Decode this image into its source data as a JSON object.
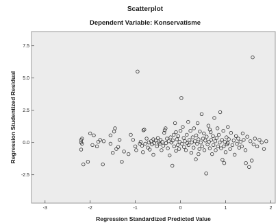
{
  "chart_data": {
    "type": "scatter",
    "title": "Scatterplot",
    "subtitle": "Dependent Variable: Konservatisme",
    "xlabel": "Regression Standardized Predicted Value",
    "ylabel": "Regression Studentized Residual",
    "xlim": [
      -3.3,
      2.1
    ],
    "ylim": [
      -4.7,
      8.6
    ],
    "xticks": [
      -3,
      -2,
      -1,
      0,
      1,
      2
    ],
    "xtick_labels": [
      "-3",
      "-2",
      "-1",
      "0",
      "1",
      "2"
    ],
    "yticks": [
      -2.5,
      0.0,
      2.5,
      5.0,
      7.5
    ],
    "ytick_labels": [
      "-2.5",
      "0.0",
      "2.5",
      "5.0",
      "7.5"
    ],
    "grid": false,
    "colors": {
      "plot_background": "#ececec",
      "marker": "#333333",
      "frame": "#9a9a9a"
    },
    "points": [
      [
        -2.2,
        0.2
      ],
      [
        -2.2,
        0.0
      ],
      [
        -2.18,
        -0.1
      ],
      [
        -2.2,
        -0.55
      ],
      [
        -2.15,
        -1.7
      ],
      [
        -2.18,
        0.3
      ],
      [
        -2.0,
        0.7
      ],
      [
        -1.92,
        0.55
      ],
      [
        -1.95,
        -0.2
      ],
      [
        -1.85,
        -0.3
      ],
      [
        -1.82,
        0.05
      ],
      [
        -1.78,
        0.2
      ],
      [
        -1.72,
        -1.7
      ],
      [
        -2.05,
        -1.5
      ],
      [
        -1.55,
        -0.1
      ],
      [
        -1.55,
        0.55
      ],
      [
        -1.5,
        -0.8
      ],
      [
        -1.47,
        0.85
      ],
      [
        -1.45,
        1.1
      ],
      [
        -1.38,
        -0.35
      ],
      [
        -1.42,
        -0.5
      ],
      [
        -1.3,
        -1.5
      ],
      [
        -1.25,
        -0.7
      ],
      [
        -1.35,
        0.2
      ],
      [
        -1.1,
        0.6
      ],
      [
        -1.05,
        0.2
      ],
      [
        -1.0,
        -0.3
      ],
      [
        -0.98,
        -0.6
      ],
      [
        -0.95,
        5.5
      ],
      [
        -0.9,
        -0.1
      ],
      [
        -0.88,
        0.05
      ],
      [
        -0.85,
        -0.25
      ],
      [
        -0.83,
        -0.75
      ],
      [
        -0.82,
        0.95
      ],
      [
        -0.8,
        1.0
      ],
      [
        -0.78,
        -0.1
      ],
      [
        -0.75,
        0.3
      ],
      [
        -0.72,
        -0.4
      ],
      [
        -0.7,
        0.0
      ],
      [
        -0.68,
        -0.55
      ],
      [
        -0.65,
        0.1
      ],
      [
        -0.63,
        -0.15
      ],
      [
        -0.6,
        0.25
      ],
      [
        -0.58,
        -0.05
      ],
      [
        -0.55,
        0.15
      ],
      [
        -0.52,
        -0.3
      ],
      [
        -0.5,
        0.35
      ],
      [
        -0.48,
        0.0
      ],
      [
        -0.46,
        -0.1
      ],
      [
        -0.44,
        0.2
      ],
      [
        -0.42,
        -0.6
      ],
      [
        -0.4,
        0.05
      ],
      [
        -0.38,
        -0.25
      ],
      [
        -0.36,
        0.75
      ],
      [
        -0.35,
        0.95
      ],
      [
        -0.33,
        1.1
      ],
      [
        -0.32,
        -0.05
      ],
      [
        -0.3,
        0.3
      ],
      [
        -0.28,
        -0.45
      ],
      [
        -0.26,
        0.1
      ],
      [
        -0.24,
        -1.0
      ],
      [
        -0.22,
        0.4
      ],
      [
        -0.2,
        0.0
      ],
      [
        -0.18,
        -1.8
      ],
      [
        -0.17,
        0.15
      ],
      [
        -0.15,
        0.6
      ],
      [
        -0.14,
        -0.3
      ],
      [
        -0.12,
        1.5
      ],
      [
        -0.1,
        0.8
      ],
      [
        -0.08,
        0.25
      ],
      [
        -0.06,
        -0.2
      ],
      [
        -0.05,
        0.5
      ],
      [
        -0.03,
        -0.5
      ],
      [
        -0.02,
        0.05
      ],
      [
        0.0,
        0.9
      ],
      [
        0.02,
        3.45
      ],
      [
        0.03,
        -0.1
      ],
      [
        0.05,
        1.2
      ],
      [
        0.07,
        0.35
      ],
      [
        0.08,
        -0.35
      ],
      [
        0.1,
        0.1
      ],
      [
        0.12,
        -0.6
      ],
      [
        0.14,
        0.6
      ],
      [
        0.15,
        -0.05
      ],
      [
        0.17,
        1.6
      ],
      [
        0.18,
        -0.2
      ],
      [
        0.2,
        0.2
      ],
      [
        0.22,
        0.9
      ],
      [
        0.24,
        -0.8
      ],
      [
        0.25,
        0.0
      ],
      [
        0.27,
        0.4
      ],
      [
        0.29,
        -0.4
      ],
      [
        0.3,
        1.1
      ],
      [
        0.32,
        0.1
      ],
      [
        0.34,
        -1.3
      ],
      [
        0.35,
        0.55
      ],
      [
        0.37,
        -0.1
      ],
      [
        0.38,
        1.5
      ],
      [
        0.4,
        0.25
      ],
      [
        0.42,
        -0.5
      ],
      [
        0.43,
        0.85
      ],
      [
        0.45,
        0.0
      ],
      [
        0.47,
        2.2
      ],
      [
        0.48,
        -0.3
      ],
      [
        0.5,
        0.3
      ],
      [
        0.52,
        0.7
      ],
      [
        0.53,
        -0.6
      ],
      [
        0.55,
        0.15
      ],
      [
        0.57,
        -2.4
      ],
      [
        0.58,
        0.45
      ],
      [
        0.6,
        -0.15
      ],
      [
        0.62,
        1.3
      ],
      [
        0.63,
        0.05
      ],
      [
        0.65,
        -0.45
      ],
      [
        0.67,
        0.8
      ],
      [
        0.68,
        0.2
      ],
      [
        0.7,
        -0.9
      ],
      [
        0.72,
        0.5
      ],
      [
        0.73,
        -0.2
      ],
      [
        0.75,
        1.9
      ],
      [
        0.77,
        0.1
      ],
      [
        0.78,
        -0.6
      ],
      [
        0.8,
        0.35
      ],
      [
        0.82,
        1.1
      ],
      [
        0.83,
        -0.3
      ],
      [
        0.85,
        0.6
      ],
      [
        0.87,
        0.0
      ],
      [
        0.88,
        2.35
      ],
      [
        0.9,
        -0.45
      ],
      [
        0.92,
        0.2
      ],
      [
        0.93,
        -1.35
      ],
      [
        0.95,
        0.9
      ],
      [
        0.97,
        -1.6
      ],
      [
        0.98,
        0.05
      ],
      [
        1.0,
        -0.75
      ],
      [
        1.02,
        0.4
      ],
      [
        1.03,
        -0.15
      ],
      [
        1.05,
        1.2
      ],
      [
        1.07,
        0.25
      ],
      [
        1.1,
        -0.5
      ],
      [
        1.12,
        0.75
      ],
      [
        1.15,
        -0.2
      ],
      [
        1.18,
        0.15
      ],
      [
        1.2,
        -0.95
      ],
      [
        1.23,
        0.5
      ],
      [
        1.25,
        -0.1
      ],
      [
        1.28,
        0.3
      ],
      [
        1.3,
        -0.4
      ],
      [
        1.33,
        0.05
      ],
      [
        1.36,
        -0.3
      ],
      [
        1.4,
        0.2
      ],
      [
        1.44,
        -0.6
      ],
      [
        1.48,
        0.45
      ],
      [
        1.52,
        -1.9
      ],
      [
        1.55,
        0.1
      ],
      [
        1.58,
        -1.4
      ],
      [
        1.6,
        6.6
      ],
      [
        1.62,
        -0.15
      ],
      [
        1.65,
        0.3
      ],
      [
        1.7,
        -0.3
      ],
      [
        1.75,
        0.2
      ],
      [
        1.8,
        0.0
      ],
      [
        1.85,
        -0.5
      ],
      [
        1.9,
        0.1
      ],
      [
        1.38,
        0.7
      ],
      [
        1.45,
        -1.6
      ],
      [
        1.05,
        -0.05
      ],
      [
        0.4,
        -0.9
      ],
      [
        -0.6,
        -0.95
      ],
      [
        -1.7,
        0.1
      ],
      [
        -1.15,
        -0.9
      ],
      [
        0.96,
        -0.3
      ],
      [
        -0.1,
        -0.65
      ],
      [
        0.65,
        1.0
      ]
    ]
  }
}
